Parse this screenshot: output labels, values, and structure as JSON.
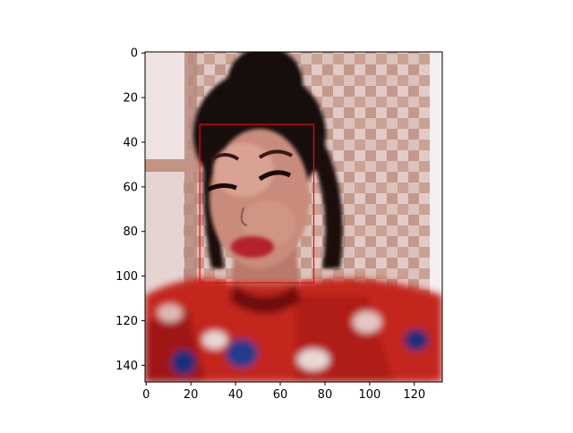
{
  "figure": {
    "xlim": [
      -0.5,
      132.5
    ],
    "ylim": [
      147.5,
      -0.5
    ],
    "xticks": [
      0,
      20,
      40,
      60,
      80,
      100,
      120
    ],
    "yticks": [
      0,
      20,
      40,
      60,
      80,
      100,
      120,
      140
    ],
    "xtick_labels": [
      "0",
      "20",
      "40",
      "60",
      "80",
      "100",
      "120"
    ],
    "ytick_labels": [
      "0",
      "20",
      "40",
      "60",
      "80",
      "100",
      "120",
      "140"
    ],
    "image": {
      "description_colors": {
        "wall_light": "#e8d6d4",
        "tile_dark": "#b88a7a",
        "tile_mid": "#cfa89c",
        "hair": "#120708",
        "skin": "#c98f80",
        "skin_light": "#dca99b",
        "lips": "#b3202d",
        "clothing_red": "#c62a1c",
        "clothing_dark": "#6e1010",
        "clothing_blue": "#233a8a",
        "clothing_white": "#e9d8d6"
      }
    },
    "detection_box": {
      "x_range": [
        24,
        75
      ],
      "y_range": [
        32,
        103
      ],
      "color": "#ff0000"
    }
  }
}
